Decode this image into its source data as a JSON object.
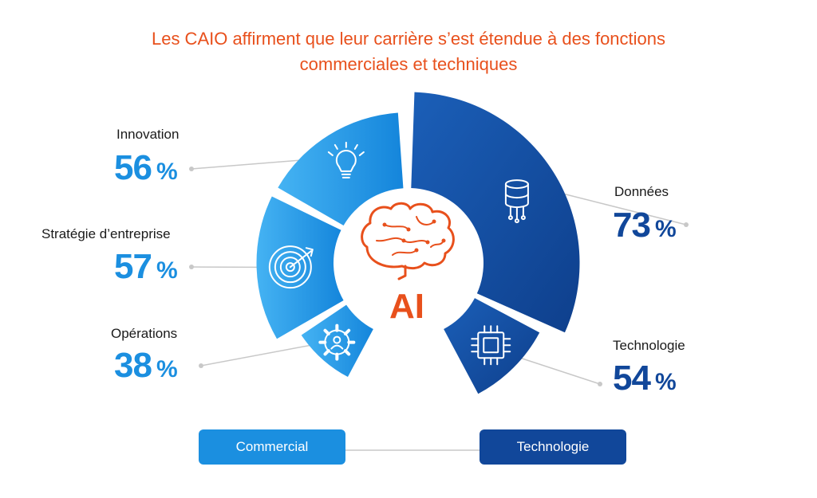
{
  "colors": {
    "title": "#e8501c",
    "commercial": "#1b8fe0",
    "commercial_light": "#37aaf0",
    "technology": "#11479a",
    "technology_light": "#1a5db5",
    "ai": "#e8501c",
    "connector": "#c8c8c8"
  },
  "header": {
    "line1": "Les CAIO affirment que leur carrière s’est étendue à des fonctions",
    "line2": "commerciales et techniques"
  },
  "center": {
    "label": "AI"
  },
  "groups": {
    "commercial": "Commercial",
    "technology": "Technologie"
  },
  "chart_data": {
    "type": "pie",
    "title": "Les CAIO affirment que leur carrière s’est étendue à des fonctions commerciales et techniques",
    "unit": "%",
    "series": [
      {
        "label": "Innovation",
        "value": 56,
        "value_text": "56",
        "group": "Commercial",
        "icon": "lightbulb-icon"
      },
      {
        "label": "Stratégie d’entreprise",
        "value": 57,
        "value_text": "57",
        "group": "Commercial",
        "icon": "target-icon"
      },
      {
        "label": "Opérations",
        "value": 38,
        "value_text": "38",
        "group": "Commercial",
        "icon": "gear-icon"
      },
      {
        "label": "Données",
        "value": 73,
        "value_text": "73",
        "group": "Technologie",
        "icon": "database-icon"
      },
      {
        "label": "Technologie",
        "value": 54,
        "value_text": "54",
        "group": "Technologie",
        "icon": "chip-icon"
      }
    ]
  }
}
